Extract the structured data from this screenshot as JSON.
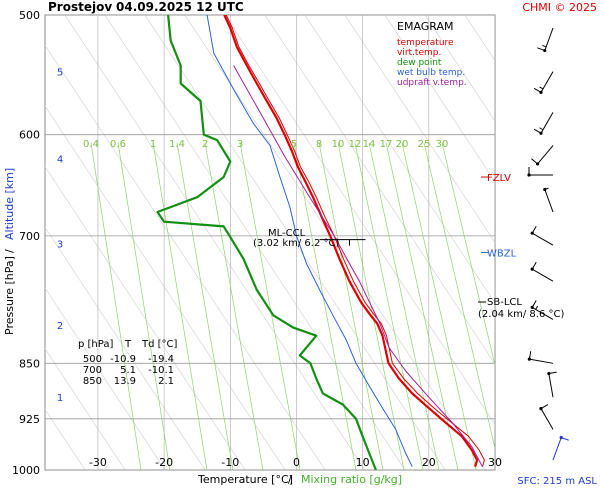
{
  "header": {
    "station": "Prostejov",
    "datetime": "04.09.2025 12 UTC",
    "copyright": "CHMI © 2025"
  },
  "footer": {
    "sfc": "SFC: 215 m ASL"
  },
  "colors": {
    "temperature": "#dd0000",
    "virt_temp": "#dd0000",
    "dew_point": "#138f13",
    "wet_bulb": "#2a62d4",
    "updraft": "#a020a0",
    "mixing_ratio": "#8fd26a",
    "mixing_ratio_label": "#7dc142",
    "altitude": "#1f3cc8",
    "copyright": "#dd0000"
  },
  "chart_data": {
    "type": "line",
    "title": "EMAGRAM",
    "xlabel_temperature": "Temperature [°C]",
    "xlabel_separator": "/",
    "xlabel_mixing": "Mixing ratio [g/kg]",
    "ylabel_pressure": "Pressure [hPa]",
    "ylabel_separator": "/",
    "ylabel_altitude": "Altitude [km]",
    "xlim": [
      -38,
      30
    ],
    "ylim_hpa": [
      1000,
      500
    ],
    "x_ticks": [
      -30,
      -20,
      -10,
      0,
      10,
      20,
      30
    ],
    "pressure_ticks": [
      500,
      600,
      700,
      850,
      925,
      1000
    ],
    "altitude_ticks": [
      {
        "km": 1,
        "p": 895
      },
      {
        "km": 2,
        "p": 802
      },
      {
        "km": 3,
        "p": 708
      },
      {
        "km": 4,
        "p": 622
      },
      {
        "km": 5,
        "p": 545
      }
    ],
    "mixing_ratio_labels": [
      "0.4",
      "0.6",
      "1",
      "1.4",
      "2",
      "3",
      "5",
      "8",
      "10",
      "12",
      "14",
      "17",
      "20",
      "25",
      "30"
    ],
    "legend": [
      {
        "key": "temperature",
        "label": "temperature"
      },
      {
        "key": "virt_temp",
        "label": "virt.temp."
      },
      {
        "key": "dew_point",
        "label": "dew point"
      },
      {
        "key": "wet_bulb",
        "label": "wet bulb temp."
      },
      {
        "key": "updraft",
        "label": "udpraft v.temp."
      }
    ],
    "levels": [
      {
        "label": "FZLV",
        "p": 640,
        "color": "#dd0000"
      },
      {
        "label": "WBZL",
        "p": 718,
        "color": "#2a62d4"
      }
    ],
    "annotations": [
      {
        "label": "ML-CCL",
        "detail": "(3.02 km/ 6.2 °C)",
        "p": 703,
        "t": 6.2
      },
      {
        "label": "SB-LCL",
        "detail": "(2.04 km/ 8.6 °C)",
        "p": 795,
        "t": 8.6
      }
    ],
    "table": {
      "headers": [
        "p [hPa]",
        "T",
        "Td [°C]"
      ],
      "rows": [
        [
          "500",
          "-10.9",
          "-19.4"
        ],
        [
          "700",
          "5.1",
          "-10.1"
        ],
        [
          "850",
          "13.9",
          "2.1"
        ]
      ]
    },
    "series": [
      {
        "name": "temperature",
        "points": [
          [
            -10.9,
            500
          ],
          [
            -10,
            510
          ],
          [
            -9,
            525
          ],
          [
            -7.5,
            540
          ],
          [
            -6,
            555
          ],
          [
            -4.5,
            570
          ],
          [
            -3,
            585
          ],
          [
            -1.8,
            600
          ],
          [
            -0.7,
            615
          ],
          [
            0.2,
            630
          ],
          [
            1.4,
            645
          ],
          [
            2.5,
            660
          ],
          [
            3.8,
            680
          ],
          [
            5.1,
            700
          ],
          [
            6.5,
            725
          ],
          [
            8,
            750
          ],
          [
            9.8,
            775
          ],
          [
            11.2,
            790
          ],
          [
            12.2,
            800
          ],
          [
            13,
            815
          ],
          [
            13.9,
            850
          ],
          [
            15.5,
            870
          ],
          [
            17.5,
            890
          ],
          [
            20,
            910
          ],
          [
            22.5,
            930
          ],
          [
            25,
            950
          ],
          [
            26.5,
            970
          ],
          [
            27.3,
            985
          ],
          [
            27,
            995
          ]
        ]
      },
      {
        "name": "virt.temp.",
        "points": [
          [
            -10.6,
            500
          ],
          [
            -9.7,
            510
          ],
          [
            -8.7,
            525
          ],
          [
            -7.2,
            540
          ],
          [
            -5.6,
            555
          ],
          [
            -4.1,
            570
          ],
          [
            -2.6,
            585
          ],
          [
            -1.4,
            600
          ],
          [
            -0.3,
            615
          ],
          [
            0.6,
            630
          ],
          [
            1.9,
            645
          ],
          [
            3,
            660
          ],
          [
            4.3,
            680
          ],
          [
            5.7,
            700
          ],
          [
            7.1,
            725
          ],
          [
            8.6,
            750
          ],
          [
            10.4,
            775
          ],
          [
            11.8,
            790
          ],
          [
            12.8,
            800
          ],
          [
            13.6,
            815
          ],
          [
            14.5,
            850
          ],
          [
            16.2,
            870
          ],
          [
            18.3,
            890
          ],
          [
            20.8,
            910
          ],
          [
            23.4,
            930
          ],
          [
            26,
            950
          ],
          [
            27.6,
            970
          ],
          [
            28.4,
            985
          ],
          [
            28.1,
            995
          ]
        ]
      },
      {
        "name": "dew point",
        "points": [
          [
            -19.4,
            500
          ],
          [
            -19,
            520
          ],
          [
            -17.5,
            540
          ],
          [
            -17.5,
            555
          ],
          [
            -14.5,
            570
          ],
          [
            -14,
            600
          ],
          [
            -12,
            605
          ],
          [
            -10,
            625
          ],
          [
            -11,
            640
          ],
          [
            -15,
            660
          ],
          [
            -21,
            675
          ],
          [
            -20,
            685
          ],
          [
            -11,
            690
          ],
          [
            -10.1,
            700
          ],
          [
            -8,
            725
          ],
          [
            -6,
            760
          ],
          [
            -3.5,
            790
          ],
          [
            -0.5,
            805
          ],
          [
            3,
            815
          ],
          [
            0.5,
            840
          ],
          [
            2.1,
            850
          ],
          [
            3,
            870
          ],
          [
            4,
            890
          ],
          [
            7,
            905
          ],
          [
            9,
            925
          ],
          [
            10,
            950
          ],
          [
            11,
            975
          ],
          [
            12,
            1000
          ]
        ]
      },
      {
        "name": "wet bulb temp.",
        "points": [
          [
            -13.5,
            500
          ],
          [
            -12.5,
            530
          ],
          [
            -9.5,
            560
          ],
          [
            -6.5,
            590
          ],
          [
            -4,
            610
          ],
          [
            -2.5,
            640
          ],
          [
            -1,
            670
          ],
          [
            0,
            700
          ],
          [
            1.5,
            730
          ],
          [
            3.5,
            760
          ],
          [
            5.5,
            790
          ],
          [
            7.5,
            820
          ],
          [
            9,
            850
          ],
          [
            11,
            880
          ],
          [
            13,
            910
          ],
          [
            15,
            940
          ],
          [
            16.5,
            975
          ],
          [
            17.5,
            995
          ]
        ]
      },
      {
        "name": "udpraft v.temp.",
        "points": [
          [
            -9.5,
            540
          ],
          [
            -5.5,
            580
          ],
          [
            -1.8,
            620
          ],
          [
            2,
            660
          ],
          [
            5.7,
            700
          ],
          [
            9.5,
            750
          ],
          [
            12.6,
            800
          ],
          [
            14,
            830
          ],
          [
            16.5,
            860
          ],
          [
            20,
            895
          ],
          [
            23.5,
            930
          ],
          [
            26.5,
            965
          ],
          [
            28.1,
            995
          ]
        ]
      }
    ],
    "wind_barbs": [
      {
        "p": 510,
        "dir": 200,
        "speed": 15
      },
      {
        "p": 545,
        "dir": 210,
        "speed": 15
      },
      {
        "p": 580,
        "dir": 210,
        "speed": 15
      },
      {
        "p": 610,
        "dir": 220,
        "speed": 10
      },
      {
        "p": 638,
        "dir": 270,
        "speed": 10
      },
      {
        "p": 675,
        "dir": 340,
        "speed": 5
      },
      {
        "p": 710,
        "dir": 300,
        "speed": 10
      },
      {
        "p": 750,
        "dir": 300,
        "speed": 10
      },
      {
        "p": 795,
        "dir": 300,
        "speed": 15
      },
      {
        "p": 850,
        "dir": 280,
        "speed": 10
      },
      {
        "p": 895,
        "dir": 350,
        "speed": 10
      },
      {
        "p": 940,
        "dir": 330,
        "speed": 10
      },
      {
        "p": 985,
        "dir": 20,
        "speed": 10
      }
    ]
  }
}
